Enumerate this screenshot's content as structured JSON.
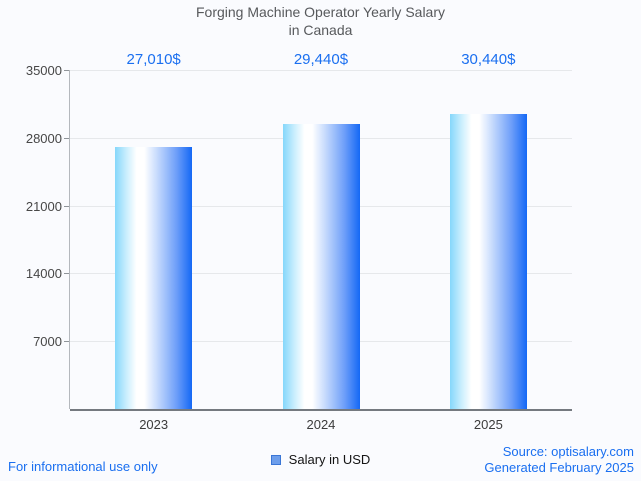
{
  "title": {
    "text": "Forging Machine Operator Yearly Salary\nin Canada"
  },
  "chart_data": {
    "type": "bar",
    "title": "Forging Machine Operator Yearly Salary in Canada",
    "categories": [
      "2023",
      "2024",
      "2025"
    ],
    "series": [
      {
        "name": "Salary in USD",
        "values": [
          27010,
          29440,
          30440
        ]
      }
    ],
    "value_labels": [
      "27,010$",
      "29,440$",
      "30,440$"
    ],
    "xlabel": "",
    "ylabel": "",
    "ylim": [
      0,
      35000
    ],
    "yticks": [
      7000,
      14000,
      21000,
      28000,
      35000
    ],
    "grid": true,
    "legend_position": "bottom"
  },
  "legend": {
    "label": "Salary in USD",
    "marker_color": "#6d9eeb",
    "marker_border": "#3a76d6"
  },
  "footer": {
    "disclaimer": "For informational use only",
    "source": "Source: optisalary.com",
    "generated": "Generated February 2025"
  },
  "colors": {
    "background": "#fafbfe",
    "title_text": "#57595c",
    "value_label": "#1a6ff0",
    "footer_text": "#1a6ff0",
    "bar_gradient_left": "#85d7fb",
    "bar_gradient_mid": "#ffffff",
    "bar_gradient_right": "#1468f5",
    "gridline": "#e6e8eb",
    "baseline": "#74797f",
    "axis_text": "#474747"
  }
}
